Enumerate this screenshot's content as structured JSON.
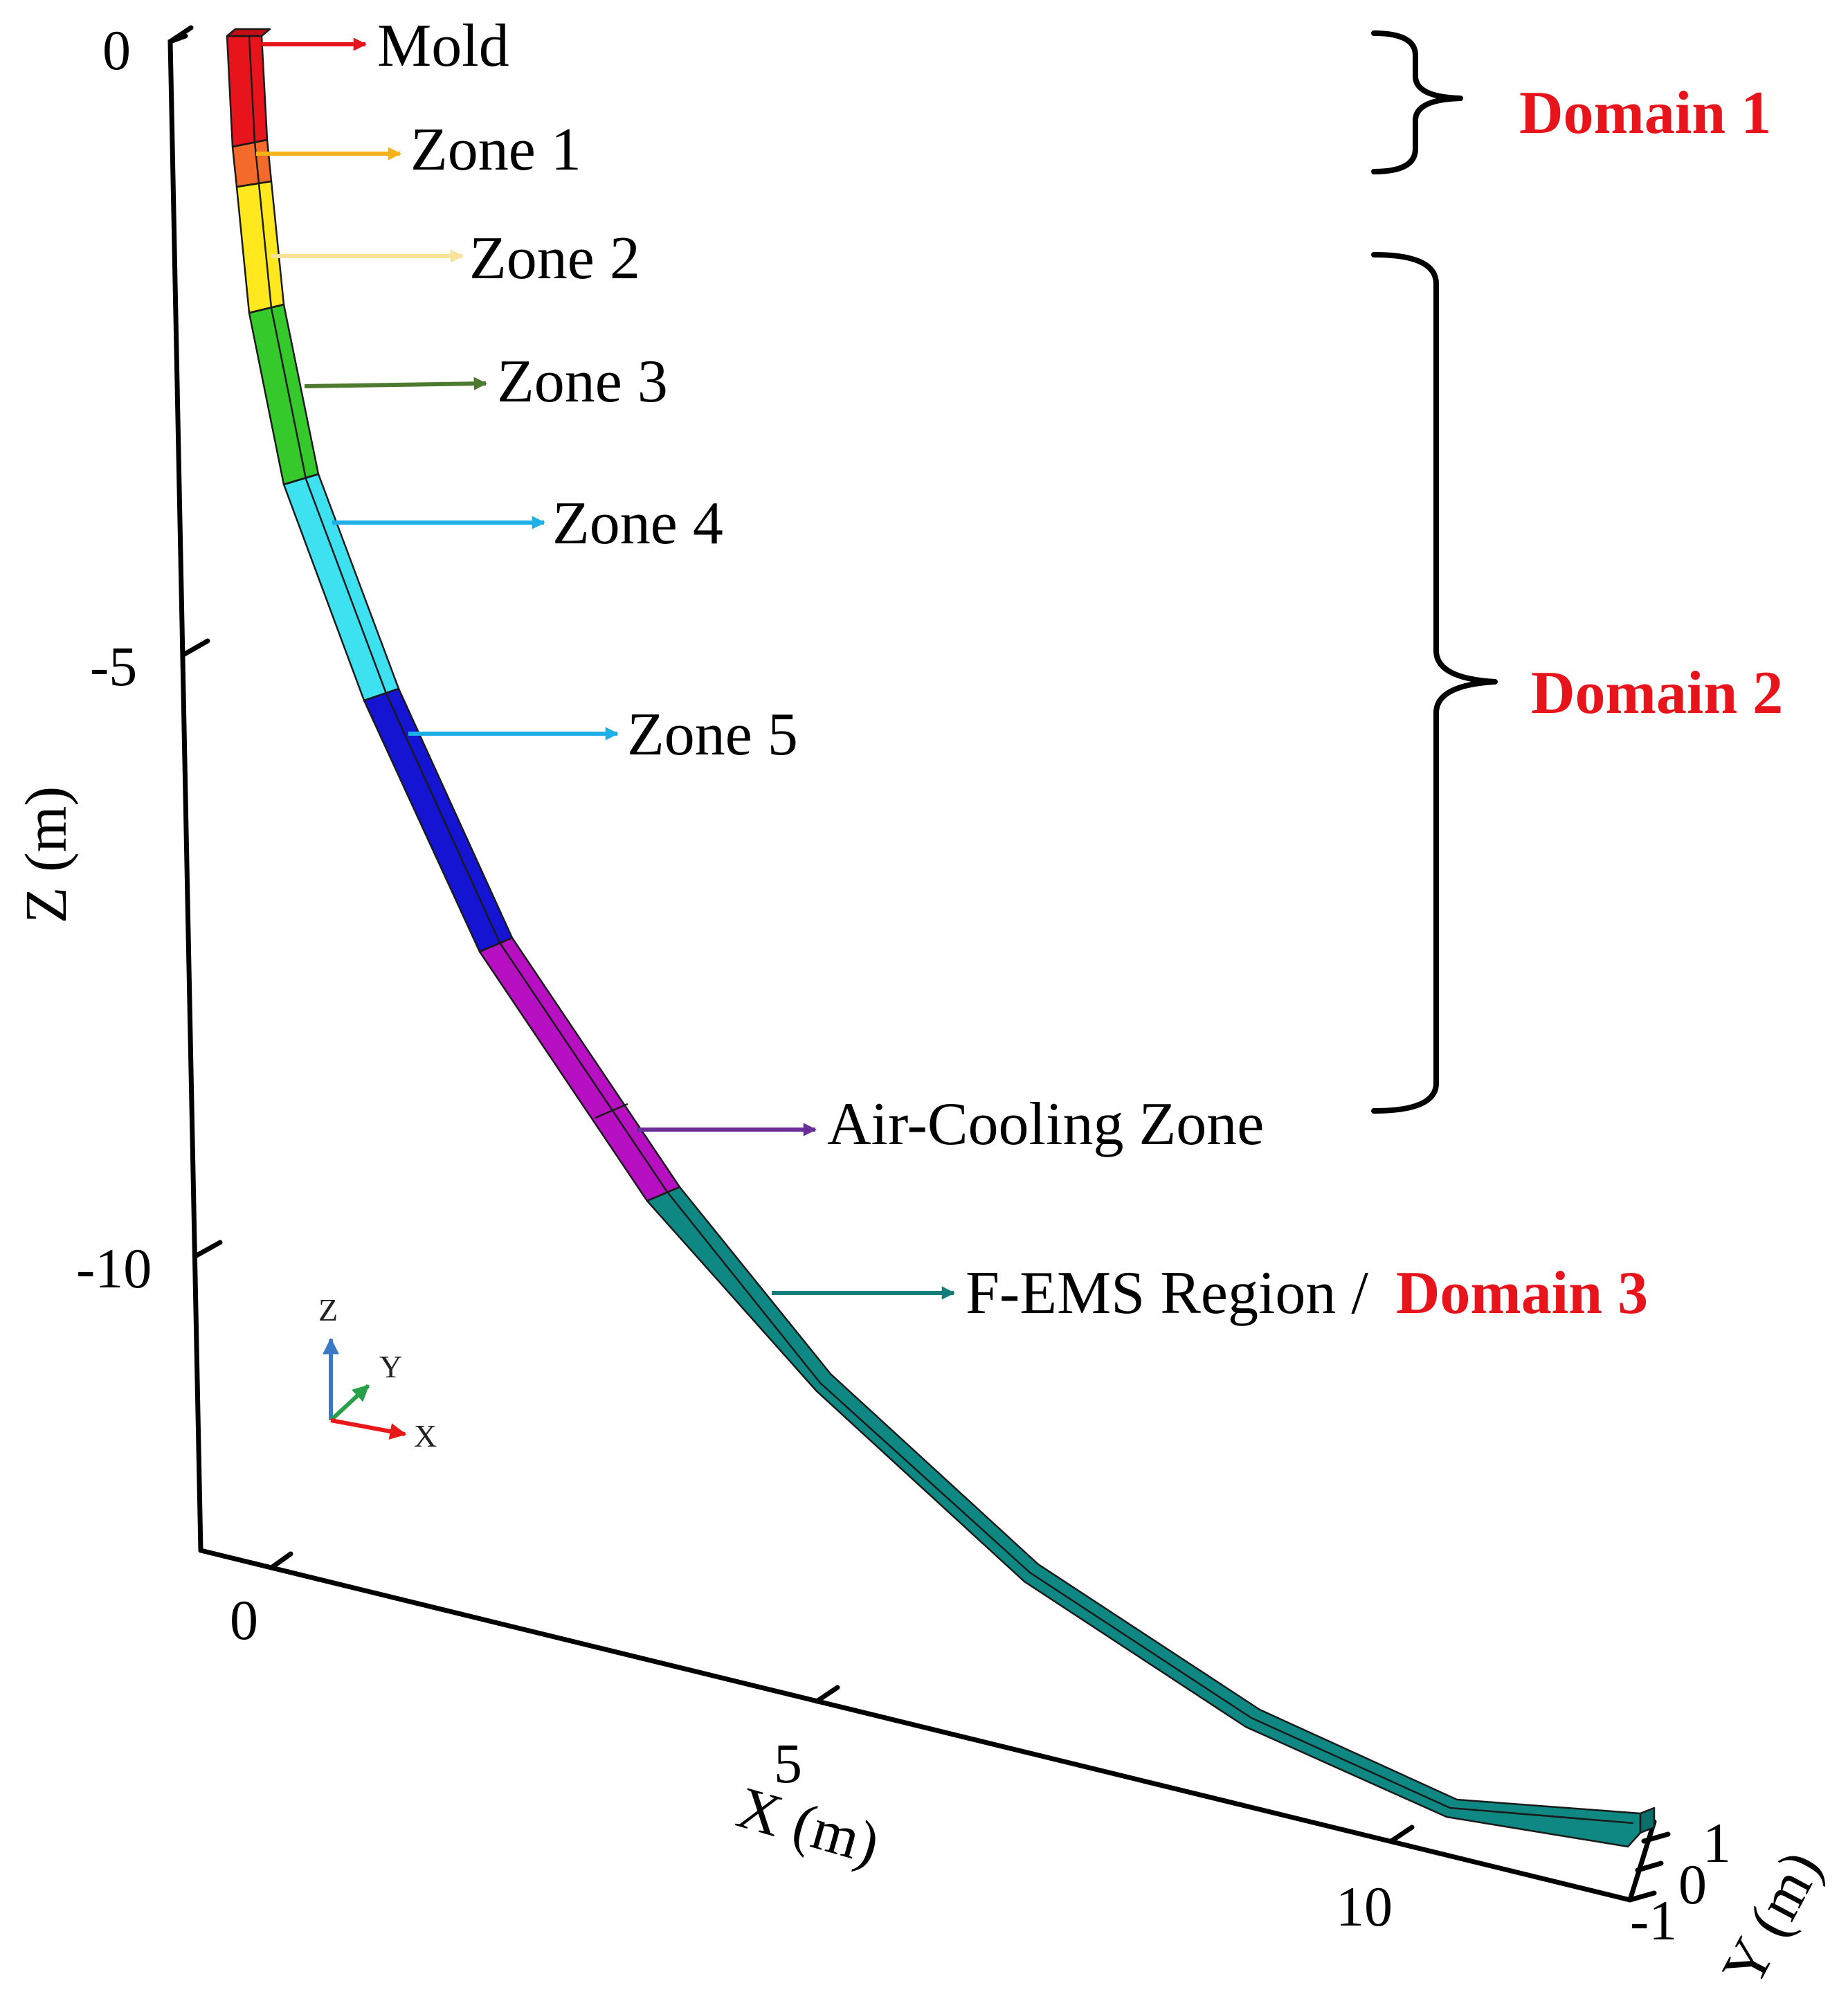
{
  "axes": {
    "z": {
      "title": "Z (m)",
      "ticks": [
        "0",
        "-5",
        "-10"
      ]
    },
    "x": {
      "title": "X (m)",
      "ticks": [
        "0",
        "5",
        "10"
      ]
    },
    "y": {
      "title": "Y (m)",
      "ticks": [
        "1",
        "0",
        "-1"
      ]
    }
  },
  "triad": {
    "z": "Z",
    "y": "Y",
    "x": "X"
  },
  "labels": {
    "mold": "Mold",
    "zone1": "Zone 1",
    "zone2": "Zone 2",
    "zone3": "Zone 3",
    "zone4": "Zone 4",
    "zone5": "Zone 5",
    "air_cooling": "Air-Cooling Zone",
    "fems": "F-EMS Region /",
    "domain1": "Domain 1",
    "domain2": "Domain 2",
    "domain3": "Domain 3"
  },
  "colors": {
    "mold": "#e8141c",
    "zone1": "#f36a2a",
    "zone2": "#ffe81e",
    "zone3": "#35c92c",
    "zone4": "#3de1f0",
    "zone5": "#1414d2",
    "air_cooling": "#b70fc2",
    "fems": "#0f8782",
    "domain_text": "#e8141c",
    "arrow_mold": "#e8141c",
    "arrow_zone1": "#f5b31a",
    "arrow_zone2": "#f7e49a",
    "arrow_zone3": "#4e7a30",
    "arrow_zone4": "#1eaee8",
    "arrow_zone5": "#1eaee8",
    "arrow_air": "#6a2e9a",
    "arrow_fems": "#137f7c"
  }
}
